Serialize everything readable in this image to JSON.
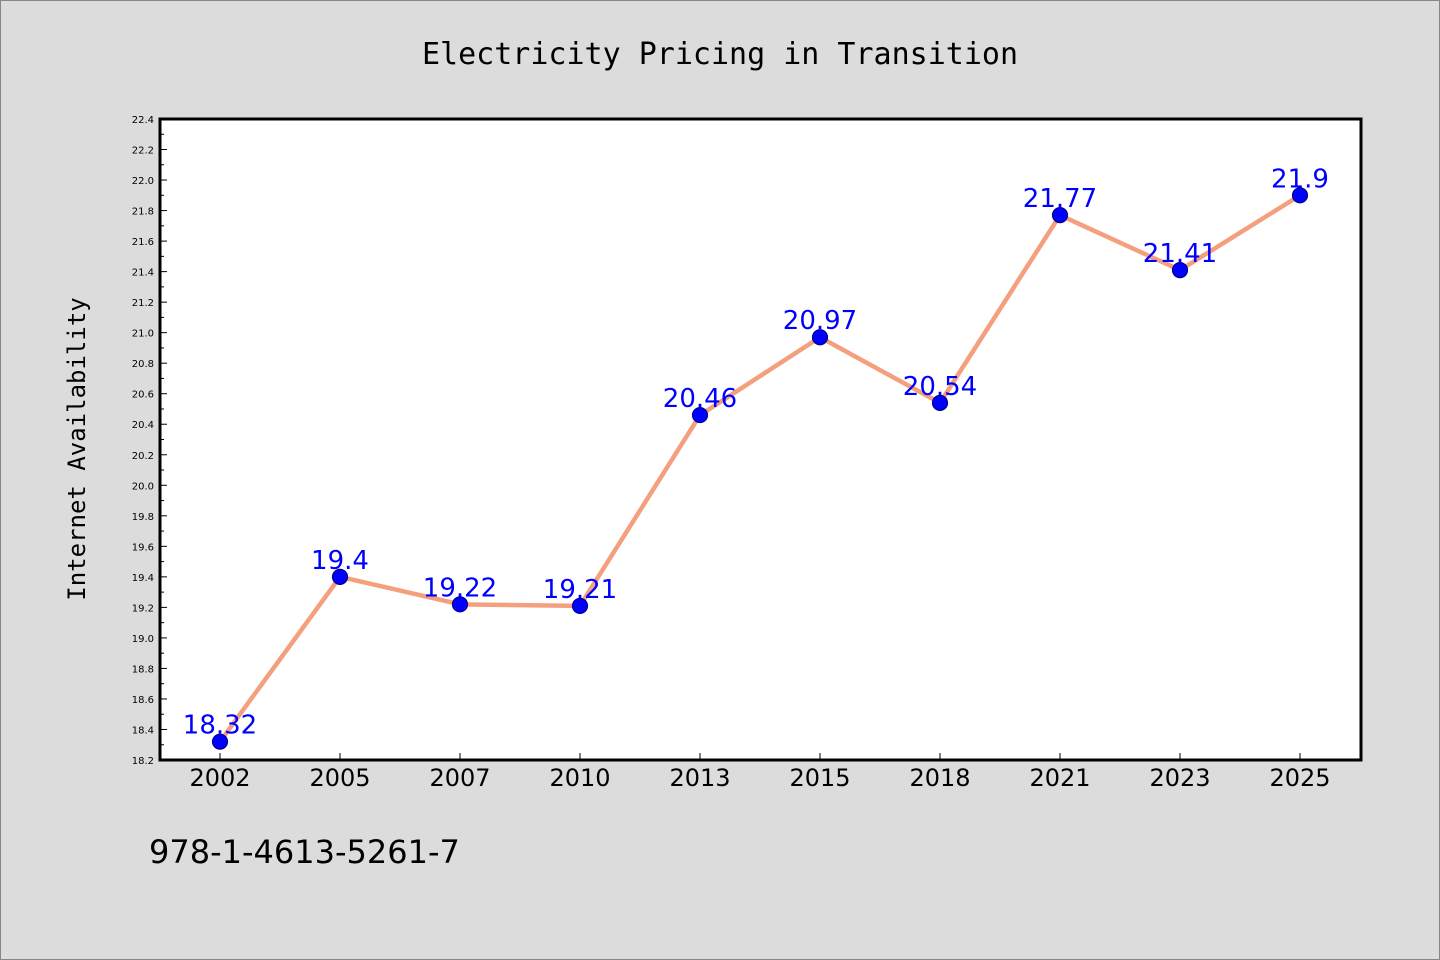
{
  "chart_data": {
    "type": "line",
    "title": "Electricity Pricing in Transition",
    "xlabel": "",
    "ylabel": "Internet Availability",
    "categories": [
      "2002",
      "2005",
      "2007",
      "2010",
      "2013",
      "2015",
      "2018",
      "2021",
      "2023",
      "2025"
    ],
    "series": [
      {
        "values": [
          18.32,
          19.4,
          19.22,
          19.21,
          20.46,
          20.97,
          20.54,
          21.77,
          21.41,
          21.9
        ],
        "labels": [
          "18.32",
          "19.4",
          "19.22",
          "19.21",
          "20.46",
          "20.97",
          "20.54",
          "21.77",
          "21.41",
          "21.9"
        ]
      }
    ],
    "ylim": [
      18.2,
      22.4
    ],
    "yticks": [
      "18.2",
      "18.4",
      "18.6",
      "18.8",
      "19.0",
      "19.2",
      "19.4",
      "19.6",
      "19.8",
      "20.0",
      "20.2",
      "20.4",
      "20.6",
      "20.8",
      "21.0",
      "21.2",
      "21.4",
      "21.6",
      "21.8",
      "22.0",
      "22.2",
      "22.4"
    ],
    "grid": false,
    "legend": "none",
    "colors": {
      "line": "#f4a07e",
      "marker": "#0000ff",
      "marker_edge": "#00008b",
      "data_label": "#0000ff",
      "figure_background": "#dcdcdc",
      "plot_background": "#ffffff"
    }
  },
  "footer": {
    "isbn": "978-1-4613-5261-7"
  }
}
